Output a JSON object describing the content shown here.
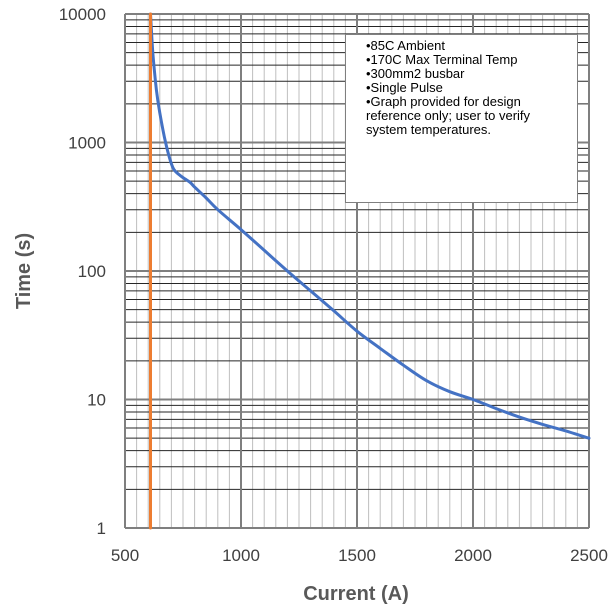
{
  "chart_data": {
    "type": "line",
    "xlabel": "Current (A)",
    "ylabel": "Time (s)",
    "x_scale": "linear",
    "y_scale": "log",
    "xlim": [
      500,
      2500
    ],
    "ylim": [
      1,
      10000
    ],
    "x_ticks": [
      500,
      1000,
      1500,
      2000,
      2500
    ],
    "y_ticks": [
      1,
      10,
      100,
      1000,
      10000
    ],
    "x_tick_labels": [
      "500",
      "1000",
      "1500",
      "2000",
      "2500"
    ],
    "y_tick_labels": [
      "1",
      "10",
      "100",
      "1000",
      "10000"
    ],
    "grid": true,
    "minor_grid": true,
    "series": [
      {
        "color": "#4472C4",
        "x": [
          610,
          620,
          635,
          650,
          670,
          690,
          710,
          740,
          780,
          800,
          850,
          900,
          1000,
          1100,
          1200,
          1300,
          1400,
          1500,
          1600,
          1700,
          1800,
          1900,
          2000,
          2100,
          2200,
          2300,
          2400,
          2500
        ],
        "y": [
          10000,
          5000,
          2600,
          1700,
          1100,
          780,
          620,
          550,
          490,
          450,
          370,
          300,
          210,
          145,
          100,
          70,
          49,
          34,
          25,
          18.5,
          14,
          11.5,
          10,
          8.5,
          7.3,
          6.4,
          5.7,
          5
        ]
      },
      {
        "color": "#ED7D31",
        "x": [
          610,
          610
        ],
        "y": [
          1,
          10000
        ]
      }
    ],
    "annotations": [
      "•85C Ambient",
      "•170C Max Terminal Temp",
      "•300mm2 busbar",
      "•Single Pulse",
      "•Graph provided for design reference only; user to verify system temperatures."
    ]
  }
}
